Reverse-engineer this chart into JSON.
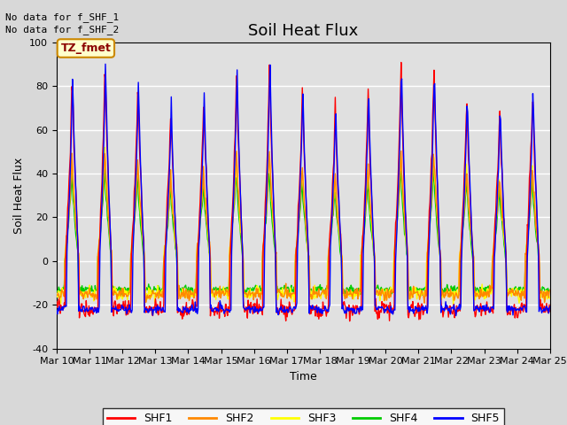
{
  "title": "Soil Heat Flux",
  "ylabel": "Soil Heat Flux",
  "xlabel": "Time",
  "ylim": [
    -40,
    100
  ],
  "tick_labels": [
    "Mar 10",
    "Mar 11",
    "Mar 12",
    "Mar 13",
    "Mar 14",
    "Mar 15",
    "Mar 16",
    "Mar 17",
    "Mar 18",
    "Mar 19",
    "Mar 20",
    "Mar 21",
    "Mar 22",
    "Mar 23",
    "Mar 24",
    "Mar 25"
  ],
  "colors": {
    "SHF1": "#ff0000",
    "SHF2": "#ff8800",
    "SHF3": "#ffff00",
    "SHF4": "#00cc00",
    "SHF5": "#0000ff"
  },
  "annotation_text": "No data for f_SHF_1\nNo data for f_SHF_2",
  "box_label": "TZ_fmet",
  "box_facecolor": "#ffffcc",
  "box_edgecolor": "#cc8800",
  "background_color": "#e0e0e0",
  "grid_color": "#ffffff",
  "title_fontsize": 13,
  "axis_label_fontsize": 9,
  "tick_fontsize": 8
}
